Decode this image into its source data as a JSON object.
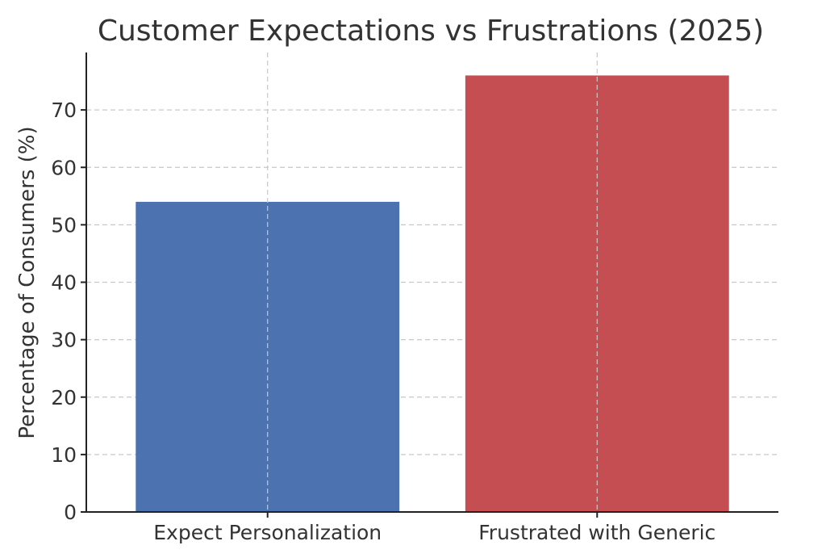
{
  "chart_data": {
    "type": "bar",
    "title": "Customer Expectations vs Frustrations (2025)",
    "xlabel": "",
    "ylabel": "Percentage of Consumers (%)",
    "categories": [
      "Expect Personalization",
      "Frustrated with Generic"
    ],
    "values": [
      54,
      76
    ],
    "colors": [
      "#4c72b0",
      "#c44e52"
    ],
    "ylim": [
      0,
      80
    ],
    "yticks": [
      0,
      10,
      20,
      30,
      40,
      50,
      60,
      70
    ],
    "grid": true,
    "legend": "none"
  }
}
